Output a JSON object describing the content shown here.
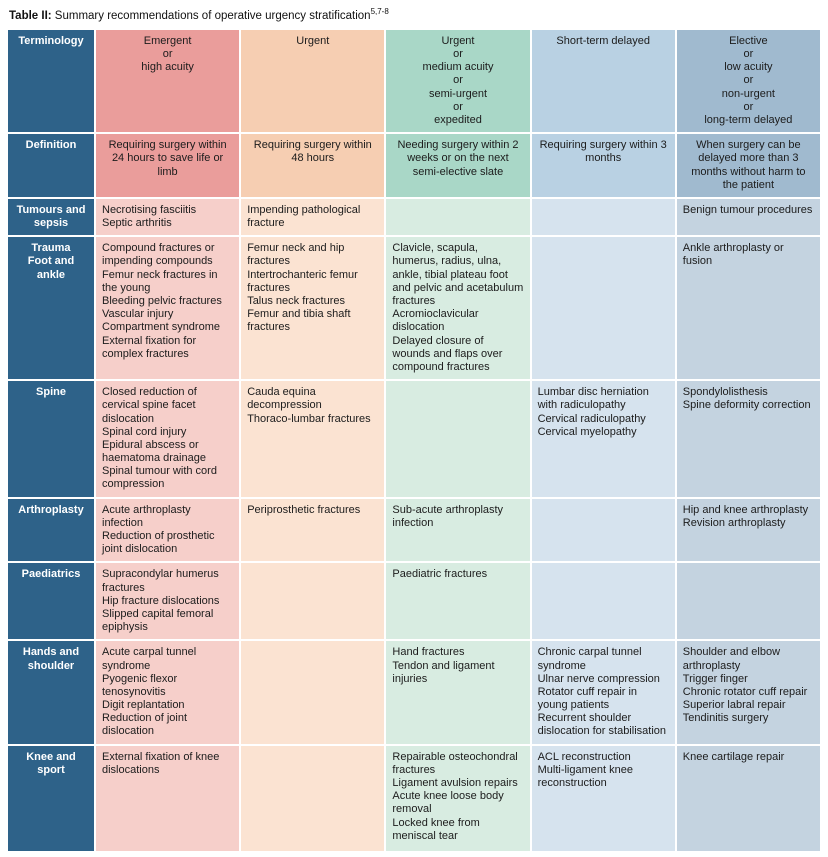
{
  "title": {
    "prefix": "Table II:",
    "text": " Summary recommendations of operative urgency stratification",
    "superscript": "5,7-8"
  },
  "colors": {
    "row_header_bg": "#2E6289",
    "row_header_text": "#FFFFFF",
    "body_text": "#1C1C1C",
    "columns": [
      {
        "name": "emergent",
        "header": "#EA9D9B",
        "body": "#F6CFCA"
      },
      {
        "name": "urgent",
        "header": "#F6CEB2",
        "body": "#FBE3D2"
      },
      {
        "name": "urgent-medium",
        "header": "#A9D7C7",
        "body": "#D8ECE1"
      },
      {
        "name": "short-term-delayed",
        "header": "#B9D1E3",
        "body": "#D6E3EE"
      },
      {
        "name": "elective",
        "header": "#A0BACF",
        "body": "#C4D3E0"
      }
    ]
  },
  "table": {
    "header_row": {
      "label": "Terminology",
      "cells": [
        "Emergent\nor\nhigh acuity",
        "Urgent",
        "Urgent\nor\nmedium acuity\nor\nsemi-urgent\nor\nexpedited",
        "Short-term delayed",
        "Elective\nor\nlow acuity\nor\nnon-urgent\nor\nlong-term delayed"
      ]
    },
    "definition_row": {
      "label": "Definition",
      "cells": [
        "Requiring surgery within 24 hours to save life or limb",
        "Requiring surgery within 48 hours",
        "Needing surgery within 2 weeks or on the next semi-elective slate",
        "Requiring surgery within 3 months",
        "When surgery can be delayed more than 3 months without harm to the patient"
      ]
    },
    "body_rows": [
      {
        "label": "Tumours and sepsis",
        "cells": [
          "Necrotising fasciitis\nSeptic arthritis",
          "Impending pathological fracture",
          "",
          "",
          "Benign tumour procedures"
        ]
      },
      {
        "label": "Trauma\nFoot and ankle",
        "cells": [
          "Compound fractures or impending compounds\nFemur neck fractures in the young\nBleeding pelvic fractures\nVascular injury\nCompartment syndrome\nExternal fixation for complex fractures",
          "Femur neck and hip fractures\nIntertrochanteric femur fractures\nTalus neck fractures\nFemur and tibia shaft fractures",
          "Clavicle, scapula, humerus, radius, ulna, ankle, tibial plateau foot and pelvic and acetabulum fractures\nAcromioclavicular dislocation\nDelayed closure of wounds and flaps over compound fractures",
          "",
          "Ankle arthroplasty or fusion"
        ]
      },
      {
        "label": "Spine",
        "cells": [
          "Closed reduction of cervical spine facet dislocation\nSpinal cord injury\nEpidural abscess or haematoma drainage\nSpinal tumour with cord compression",
          "Cauda equina decompression\nThoraco-lumbar fractures",
          "",
          "Lumbar disc herniation with radiculopathy\nCervical radiculopathy\nCervical myelopathy",
          "Spondylolisthesis\nSpine deformity correction"
        ]
      },
      {
        "label": "Arthroplasty",
        "cells": [
          "Acute arthroplasty infection\nReduction of prosthetic joint dislocation",
          "Periprosthetic fractures",
          "Sub-acute arthroplasty infection",
          "",
          "Hip and knee arthroplasty\nRevision arthroplasty"
        ]
      },
      {
        "label": "Paediatrics",
        "cells": [
          "Supracondylar humerus fractures\nHip fracture dislocations\nSlipped capital femoral epiphysis",
          "",
          "Paediatric fractures",
          "",
          ""
        ]
      },
      {
        "label": "Hands and shoulder",
        "cells": [
          "Acute carpal tunnel syndrome\nPyogenic flexor tenosynovitis\nDigit replantation\nReduction of joint dislocation",
          "",
          "Hand fractures\nTendon and ligament injuries",
          "Chronic carpal tunnel syndrome\nUlnar nerve compression\nRotator cuff repair in young patients\nRecurrent shoulder dislocation for stabilisation",
          "Shoulder and elbow arthroplasty\nTrigger finger\nChronic rotator cuff repair\nSuperior labral repair\nTendinitis surgery"
        ]
      },
      {
        "label": "Knee and sport",
        "cells": [
          "External fixation of knee dislocations",
          "",
          "Repairable osteochondral fractures\nLigament avulsion repairs\nAcute knee loose body removal\nLocked knee from meniscal tear",
          "ACL reconstruction\nMulti-ligament knee reconstruction",
          "Knee cartilage repair"
        ]
      }
    ]
  }
}
